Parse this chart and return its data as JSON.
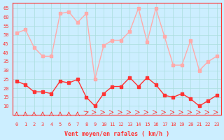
{
  "x": [
    0,
    1,
    2,
    3,
    4,
    5,
    6,
    7,
    8,
    9,
    10,
    11,
    12,
    13,
    14,
    15,
    16,
    17,
    18,
    19,
    20,
    21,
    22,
    23
  ],
  "wind_avg": [
    24,
    22,
    18,
    18,
    17,
    24,
    23,
    25,
    15,
    10,
    17,
    21,
    21,
    26,
    21,
    26,
    22,
    16,
    15,
    17,
    14,
    10,
    13,
    16
  ],
  "wind_gust": [
    51,
    53,
    43,
    38,
    38,
    62,
    63,
    57,
    62,
    25,
    44,
    47,
    47,
    52,
    65,
    46,
    65,
    49,
    33,
    33,
    47,
    30,
    35,
    38
  ],
  "avg_color": "#ff3333",
  "gust_color": "#ffaaaa",
  "bg_color": "#cceeff",
  "grid_color": "#aadddd",
  "xlabel": "Vent moyen/en rafales ( km/h )",
  "ylim": [
    5,
    68
  ],
  "yticks": [
    10,
    15,
    20,
    25,
    30,
    35,
    40,
    45,
    50,
    55,
    60,
    65
  ],
  "xticks": [
    0,
    1,
    2,
    3,
    4,
    5,
    6,
    7,
    8,
    9,
    10,
    11,
    12,
    13,
    14,
    15,
    16,
    17,
    18,
    19,
    20,
    21,
    22,
    23
  ]
}
